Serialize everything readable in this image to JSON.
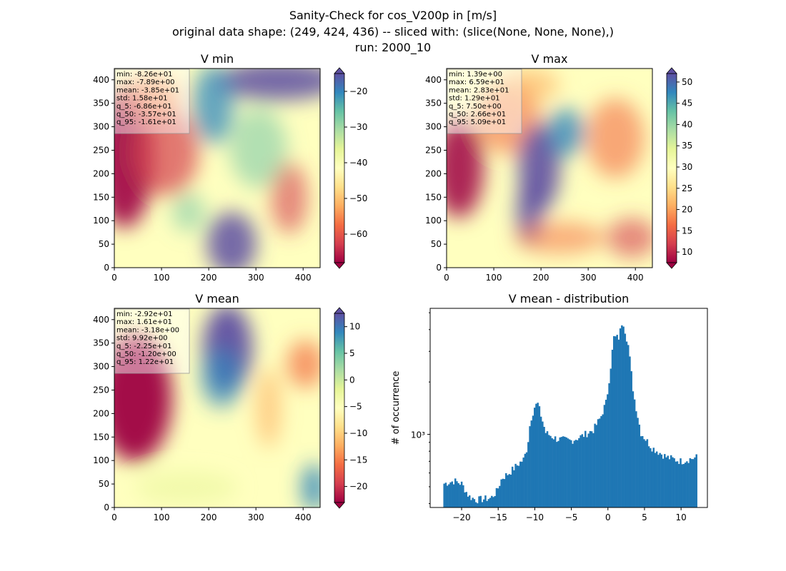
{
  "figure": {
    "title_lines": [
      "Sanity-Check for cos_V200p in [m/s]",
      "original data shape: (249, 424, 436) -- sliced with: (slice(None, None, None),)",
      "run: 2000_10"
    ]
  },
  "chart_data": [
    {
      "type": "heatmap",
      "title": "V min",
      "xlim": [
        0,
        436
      ],
      "ylim": [
        0,
        424
      ],
      "xticks": [
        0,
        100,
        200,
        300,
        400
      ],
      "yticks": [
        0,
        50,
        100,
        150,
        200,
        250,
        300,
        350,
        400
      ],
      "colormap": "Spectral",
      "colorbar": {
        "min": -68,
        "max": -15,
        "ticks": [
          -60,
          -50,
          -40,
          -30,
          -20
        ],
        "extend": "both"
      },
      "stats": [
        "min: -8.26e+01",
        "max: -7.89e+00",
        "mean: -3.85e+01",
        "std: 1.58e+01",
        "q_5: -6.86e+01",
        "q_50: -3.57e+01",
        "q_95: -1.61e+01"
      ]
    },
    {
      "type": "heatmap",
      "title": "V max",
      "xlim": [
        0,
        436
      ],
      "ylim": [
        0,
        424
      ],
      "xticks": [
        0,
        100,
        200,
        300,
        400
      ],
      "yticks": [
        0,
        50,
        100,
        150,
        200,
        250,
        300,
        350,
        400
      ],
      "colormap": "Spectral",
      "colorbar": {
        "min": 7.5,
        "max": 52,
        "ticks": [
          10,
          15,
          20,
          25,
          30,
          35,
          40,
          45,
          50
        ],
        "extend": "both"
      },
      "stats": [
        "min: 1.39e+00",
        "max: 6.59e+01",
        "mean: 2.83e+01",
        "std: 1.29e+01",
        "q_5: 7.50e+00",
        "q_50: 2.66e+01",
        "q_95: 5.09e+01"
      ]
    },
    {
      "type": "heatmap",
      "title": "V mean",
      "xlim": [
        0,
        436
      ],
      "ylim": [
        0,
        424
      ],
      "xticks": [
        0,
        100,
        200,
        300,
        400
      ],
      "yticks": [
        0,
        50,
        100,
        150,
        200,
        250,
        300,
        350,
        400
      ],
      "colormap": "Spectral",
      "colorbar": {
        "min": -23,
        "max": 12.5,
        "ticks": [
          -20,
          -15,
          -10,
          -5,
          0,
          5,
          10
        ],
        "extend": "both"
      },
      "stats": [
        "min: -2.92e+01",
        "max: 1.61e+01",
        "mean: -3.18e+00",
        "std: 9.92e+00",
        "q_5: -2.25e+01",
        "q_50: -1.20e+00",
        "q_95: 1.22e+01"
      ]
    },
    {
      "type": "bar",
      "title": "V mean - distribution",
      "xlabel": "",
      "ylabel": "# of occurrence",
      "yscale": "log",
      "xlim": [
        -24.3,
        13.6
      ],
      "ylim": [
        380,
        5300
      ],
      "xticks": [
        -20,
        -15,
        -10,
        -5,
        0,
        5,
        10
      ],
      "yticks": [
        {
          "value": 1000,
          "label": "10³"
        }
      ],
      "color": "#1f77b4",
      "bin_range": [
        -22.5,
        12.2
      ],
      "bin_count": 160,
      "profile": [
        [
          -22.5,
          520
        ],
        [
          -21.0,
          540
        ],
        [
          -20.0,
          520
        ],
        [
          -19.0,
          440
        ],
        [
          -18.0,
          420
        ],
        [
          -16.0,
          430
        ],
        [
          -15.2,
          470
        ],
        [
          -14.5,
          560
        ],
        [
          -13.5,
          600
        ],
        [
          -12.5,
          660
        ],
        [
          -11.5,
          720
        ],
        [
          -11.0,
          850
        ],
        [
          -10.6,
          1200
        ],
        [
          -10.0,
          1450
        ],
        [
          -9.6,
          1500
        ],
        [
          -8.5,
          1020
        ],
        [
          -7.0,
          940
        ],
        [
          -5.0,
          920
        ],
        [
          -3.5,
          980
        ],
        [
          -2.0,
          1060
        ],
        [
          -1.0,
          1250
        ],
        [
          -0.2,
          1550
        ],
        [
          0.3,
          2300
        ],
        [
          0.8,
          3600
        ],
        [
          1.5,
          3600
        ],
        [
          2.0,
          4600
        ],
        [
          2.8,
          3200
        ],
        [
          3.5,
          1700
        ],
        [
          4.5,
          1020
        ],
        [
          6.0,
          840
        ],
        [
          8.0,
          740
        ],
        [
          10.0,
          700
        ],
        [
          12.2,
          740
        ]
      ]
    }
  ]
}
